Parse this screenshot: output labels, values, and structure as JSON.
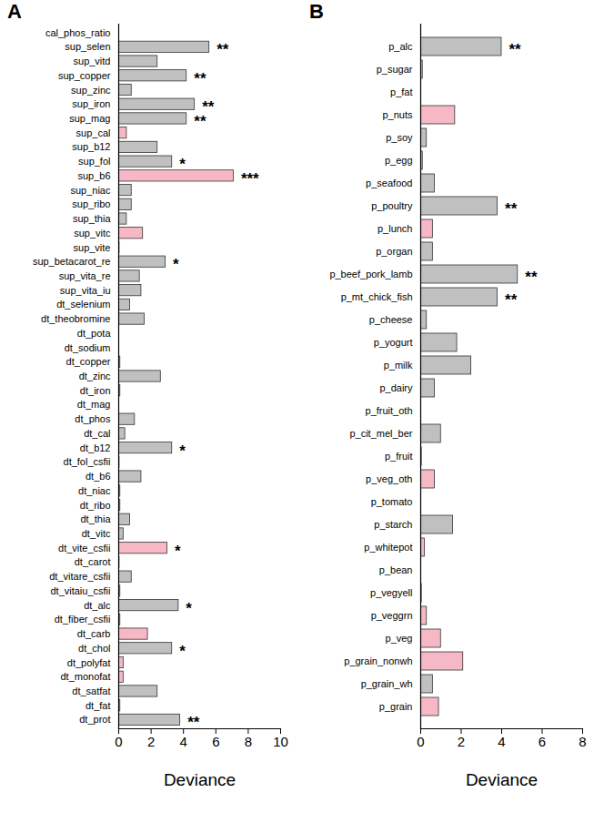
{
  "chart_data": [
    {
      "type": "bar",
      "orientation": "horizontal",
      "title": "A",
      "x_label": "Deviance",
      "xlim": [
        0,
        10
      ],
      "xticks": [
        0,
        2,
        4,
        6,
        8,
        10
      ],
      "categories": [
        "cal_phos_ratio",
        "sup_selen",
        "sup_vitd",
        "sup_copper",
        "sup_zinc",
        "sup_iron",
        "sup_mag",
        "sup_cal",
        "sup_b12",
        "sup_fol",
        "sup_b6",
        "sup_niac",
        "sup_ribo",
        "sup_thia",
        "sup_vitc",
        "sup_vite",
        "sup_betacarot_re",
        "sup_vita_re",
        "sup_vita_iu",
        "dt_selenium",
        "dt_theobromine",
        "dt_pota",
        "dt_sodium",
        "dt_copper",
        "dt_zinc",
        "dt_iron",
        "dt_mag",
        "dt_phos",
        "dt_cal",
        "dt_b12",
        "dt_fol_csfii",
        "dt_b6",
        "dt_niac",
        "dt_ribo",
        "dt_thia",
        "dt_vitc",
        "dt_vite_csfii",
        "dt_carot",
        "dt_vitare_csfii",
        "dt_vitaiu_csfii",
        "dt_alc",
        "dt_fiber_csfii",
        "dt_carb",
        "dt_chol",
        "dt_polyfat",
        "dt_monofat",
        "dt_satfat",
        "dt_fat",
        "dt_prot"
      ],
      "values": [
        0.02,
        5.6,
        2.4,
        4.2,
        0.8,
        4.7,
        4.2,
        0.5,
        2.4,
        3.3,
        7.1,
        0.8,
        0.8,
        0.5,
        1.5,
        0.05,
        2.9,
        1.3,
        1.4,
        0.7,
        1.6,
        0.02,
        0.02,
        0.1,
        2.6,
        0.1,
        0.02,
        1.0,
        0.4,
        3.3,
        0.05,
        1.4,
        0.1,
        0.1,
        0.7,
        0.3,
        3.0,
        0.05,
        0.8,
        0.1,
        3.7,
        0.1,
        1.8,
        3.3,
        0.3,
        0.3,
        2.4,
        0.1,
        3.8
      ],
      "colors": [
        "#c0c0c0",
        "#c0c0c0",
        "#c0c0c0",
        "#c0c0c0",
        "#c0c0c0",
        "#c0c0c0",
        "#c0c0c0",
        "#f7b8c6",
        "#c0c0c0",
        "#c0c0c0",
        "#f7b8c6",
        "#c0c0c0",
        "#c0c0c0",
        "#c0c0c0",
        "#f7b8c6",
        "#c0c0c0",
        "#c0c0c0",
        "#c0c0c0",
        "#c0c0c0",
        "#c0c0c0",
        "#c0c0c0",
        "#c0c0c0",
        "#c0c0c0",
        "#c0c0c0",
        "#c0c0c0",
        "#c0c0c0",
        "#c0c0c0",
        "#c0c0c0",
        "#c0c0c0",
        "#c0c0c0",
        "#c0c0c0",
        "#c0c0c0",
        "#c0c0c0",
        "#c0c0c0",
        "#c0c0c0",
        "#c0c0c0",
        "#f7b8c6",
        "#c0c0c0",
        "#c0c0c0",
        "#c0c0c0",
        "#c0c0c0",
        "#c0c0c0",
        "#f7b8c6",
        "#c0c0c0",
        "#f7b8c6",
        "#f7b8c6",
        "#c0c0c0",
        "#f7b8c6",
        "#c0c0c0"
      ],
      "annotations": [
        {
          "category": "sup_selen",
          "text": "**"
        },
        {
          "category": "sup_copper",
          "text": "**"
        },
        {
          "category": "sup_iron",
          "text": "**"
        },
        {
          "category": "sup_mag",
          "text": "**"
        },
        {
          "category": "sup_fol",
          "text": "*"
        },
        {
          "category": "sup_b6",
          "text": "***"
        },
        {
          "category": "sup_betacarot_re",
          "text": "*"
        },
        {
          "category": "dt_b12",
          "text": "*"
        },
        {
          "category": "dt_vite_csfii",
          "text": "*"
        },
        {
          "category": "dt_alc",
          "text": "*"
        },
        {
          "category": "dt_chol",
          "text": "*"
        },
        {
          "category": "dt_prot",
          "text": "**"
        }
      ]
    },
    {
      "type": "bar",
      "orientation": "horizontal",
      "title": "B",
      "x_label": "Deviance",
      "xlim": [
        0,
        8
      ],
      "xticks": [
        0,
        2,
        4,
        6,
        8
      ],
      "categories": [
        "p_alc",
        "p_sugar",
        "p_fat",
        "p_nuts",
        "p_soy",
        "p_egg",
        "p_seafood",
        "p_poultry",
        "p_lunch",
        "p_organ",
        "p_beef_pork_lamb",
        "p_mt_chick_fish",
        "p_cheese",
        "p_yogurt",
        "p_milk",
        "p_dairy",
        "p_fruit_oth",
        "p_cit_mel_ber",
        "p_fruit",
        "p_veg_oth",
        "p_tomato",
        "p_starch",
        "p_whitepot",
        "p_bean",
        "p_vegyell",
        "p_veggrn",
        "p_veg",
        "p_grain_nonwh",
        "p_grain_wh",
        "p_grain"
      ],
      "values": [
        4.0,
        0.1,
        0.02,
        1.7,
        0.3,
        0.1,
        0.7,
        3.8,
        0.6,
        0.6,
        4.8,
        3.8,
        0.3,
        1.8,
        2.5,
        0.7,
        0.02,
        1.0,
        0.05,
        0.7,
        0.02,
        1.6,
        0.2,
        0.02,
        0.05,
        0.3,
        1.0,
        2.1,
        0.6,
        0.9
      ],
      "colors": [
        "#c0c0c0",
        "#f7b8c6",
        "#c0c0c0",
        "#f7b8c6",
        "#c0c0c0",
        "#c0c0c0",
        "#c0c0c0",
        "#c0c0c0",
        "#f7b8c6",
        "#c0c0c0",
        "#c0c0c0",
        "#c0c0c0",
        "#c0c0c0",
        "#c0c0c0",
        "#c0c0c0",
        "#c0c0c0",
        "#c0c0c0",
        "#c0c0c0",
        "#c0c0c0",
        "#f7b8c6",
        "#c0c0c0",
        "#c0c0c0",
        "#f7b8c6",
        "#c0c0c0",
        "#c0c0c0",
        "#f7b8c6",
        "#f7b8c6",
        "#f7b8c6",
        "#c0c0c0",
        "#f7b8c6"
      ],
      "annotations": [
        {
          "category": "p_alc",
          "text": "**"
        },
        {
          "category": "p_poultry",
          "text": "**"
        },
        {
          "category": "p_beef_pork_lamb",
          "text": "**"
        },
        {
          "category": "p_mt_chick_fish",
          "text": "**"
        }
      ]
    }
  ]
}
